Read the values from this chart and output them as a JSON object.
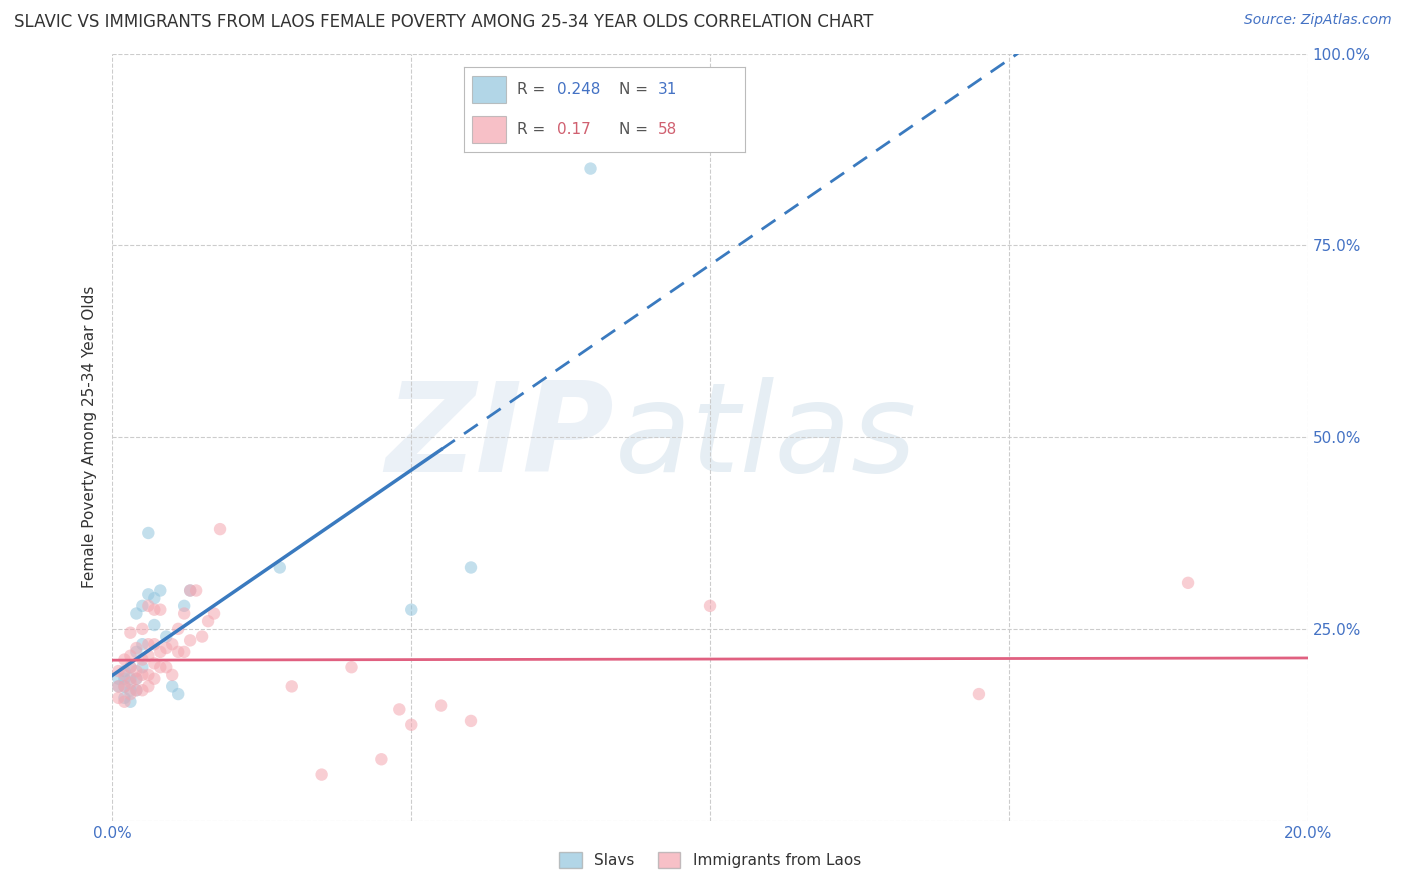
{
  "title": "SLAVIC VS IMMIGRANTS FROM LAOS FEMALE POVERTY AMONG 25-34 YEAR OLDS CORRELATION CHART",
  "source": "Source: ZipAtlas.com",
  "ylabel": "Female Poverty Among 25-34 Year Olds",
  "xmin": 0.0,
  "xmax": 0.2,
  "ymin": 0.0,
  "ymax": 1.0,
  "yticks": [
    0.0,
    0.25,
    0.5,
    0.75,
    1.0
  ],
  "ytick_labels_right": [
    "",
    "25.0%",
    "50.0%",
    "75.0%",
    "100.0%"
  ],
  "xticks": [
    0.0,
    0.05,
    0.1,
    0.15,
    0.2
  ],
  "xtick_labels": [
    "0.0%",
    "",
    "",
    "",
    "20.0%"
  ],
  "slavs_R": 0.248,
  "slavs_N": 31,
  "laos_R": 0.17,
  "laos_N": 58,
  "slavs_color": "#92c5de",
  "laos_color": "#f4a6b0",
  "trend_slavs_color": "#3a7abf",
  "trend_laos_color": "#e06080",
  "slavs_x": [
    0.001,
    0.001,
    0.002,
    0.002,
    0.002,
    0.002,
    0.003,
    0.003,
    0.003,
    0.003,
    0.004,
    0.004,
    0.004,
    0.004,
    0.005,
    0.005,
    0.005,
    0.006,
    0.006,
    0.007,
    0.007,
    0.008,
    0.009,
    0.01,
    0.011,
    0.012,
    0.013,
    0.028,
    0.05,
    0.06,
    0.08
  ],
  "slavs_y": [
    0.175,
    0.185,
    0.16,
    0.175,
    0.185,
    0.195,
    0.155,
    0.17,
    0.185,
    0.2,
    0.17,
    0.185,
    0.22,
    0.27,
    0.2,
    0.23,
    0.28,
    0.295,
    0.375,
    0.255,
    0.29,
    0.3,
    0.24,
    0.175,
    0.165,
    0.28,
    0.3,
    0.33,
    0.275,
    0.33,
    0.85
  ],
  "laos_x": [
    0.001,
    0.001,
    0.001,
    0.002,
    0.002,
    0.002,
    0.002,
    0.003,
    0.003,
    0.003,
    0.003,
    0.003,
    0.004,
    0.004,
    0.004,
    0.004,
    0.005,
    0.005,
    0.005,
    0.005,
    0.006,
    0.006,
    0.006,
    0.006,
    0.006,
    0.007,
    0.007,
    0.007,
    0.007,
    0.008,
    0.008,
    0.008,
    0.009,
    0.009,
    0.01,
    0.01,
    0.011,
    0.011,
    0.012,
    0.012,
    0.013,
    0.013,
    0.014,
    0.015,
    0.016,
    0.017,
    0.018,
    0.03,
    0.035,
    0.04,
    0.045,
    0.048,
    0.05,
    0.055,
    0.1,
    0.145,
    0.18,
    0.06
  ],
  "laos_y": [
    0.16,
    0.175,
    0.195,
    0.155,
    0.175,
    0.19,
    0.21,
    0.165,
    0.18,
    0.2,
    0.215,
    0.245,
    0.17,
    0.185,
    0.195,
    0.225,
    0.17,
    0.19,
    0.21,
    0.25,
    0.175,
    0.19,
    0.215,
    0.23,
    0.28,
    0.185,
    0.205,
    0.23,
    0.275,
    0.2,
    0.22,
    0.275,
    0.2,
    0.225,
    0.19,
    0.23,
    0.22,
    0.25,
    0.22,
    0.27,
    0.235,
    0.3,
    0.3,
    0.24,
    0.26,
    0.27,
    0.38,
    0.175,
    0.06,
    0.2,
    0.08,
    0.145,
    0.125,
    0.15,
    0.28,
    0.165,
    0.31,
    0.13
  ],
  "marker_size": 80,
  "alpha": 0.55,
  "background_color": "#ffffff",
  "grid_color": "#cccccc",
  "watermark_zip_color": "#c8d8ea",
  "watermark_atlas_color": "#b8cfe0",
  "watermark_alpha": 0.35,
  "title_fontsize": 12,
  "source_fontsize": 10,
  "axis_label_fontsize": 11,
  "ylabel_fontsize": 11
}
